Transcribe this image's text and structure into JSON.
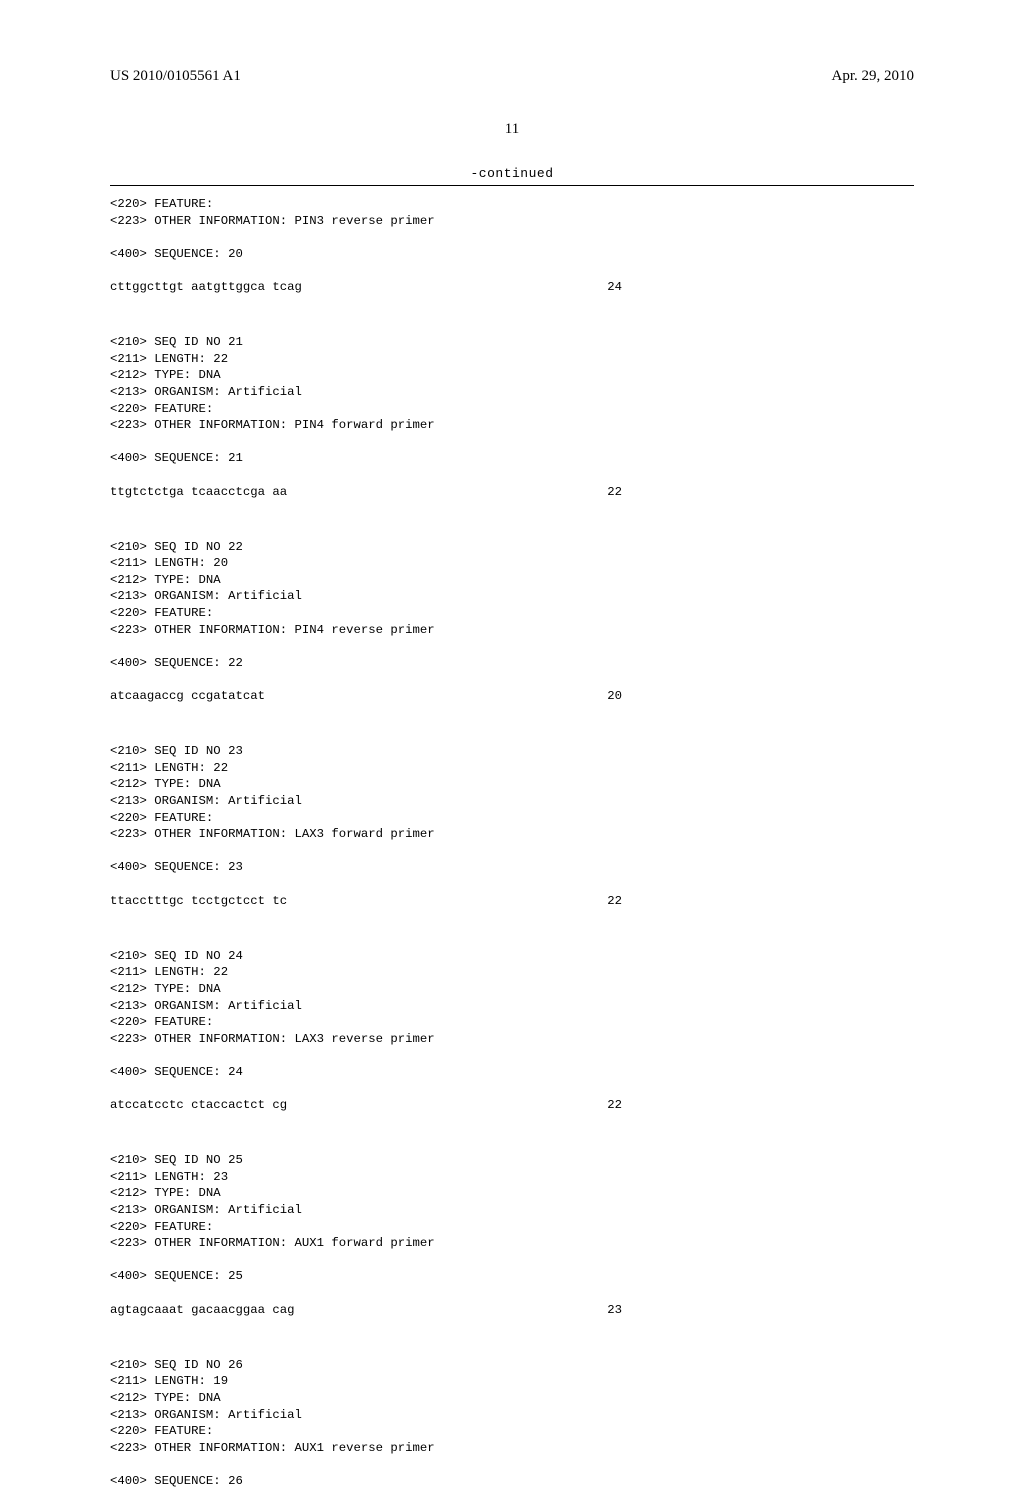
{
  "header": {
    "pub_number": "US 2010/0105561 A1",
    "pub_date": "Apr. 29, 2010"
  },
  "page_number": "11",
  "continued_label": "-continued",
  "sequences": [
    {
      "meta": [
        "<220> FEATURE:",
        "<223> OTHER INFORMATION: PIN3 reverse primer"
      ],
      "seq_label": "<400> SEQUENCE: 20",
      "sequence": "cttggcttgt aatgttggca tcag",
      "length": "24"
    },
    {
      "meta": [
        "<210> SEQ ID NO 21",
        "<211> LENGTH: 22",
        "<212> TYPE: DNA",
        "<213> ORGANISM: Artificial",
        "<220> FEATURE:",
        "<223> OTHER INFORMATION: PIN4 forward primer"
      ],
      "seq_label": "<400> SEQUENCE: 21",
      "sequence": "ttgtctctga tcaacctcga aa",
      "length": "22"
    },
    {
      "meta": [
        "<210> SEQ ID NO 22",
        "<211> LENGTH: 20",
        "<212> TYPE: DNA",
        "<213> ORGANISM: Artificial",
        "<220> FEATURE:",
        "<223> OTHER INFORMATION: PIN4 reverse primer"
      ],
      "seq_label": "<400> SEQUENCE: 22",
      "sequence": "atcaagaccg ccgatatcat",
      "length": "20"
    },
    {
      "meta": [
        "<210> SEQ ID NO 23",
        "<211> LENGTH: 22",
        "<212> TYPE: DNA",
        "<213> ORGANISM: Artificial",
        "<220> FEATURE:",
        "<223> OTHER INFORMATION: LAX3 forward primer"
      ],
      "seq_label": "<400> SEQUENCE: 23",
      "sequence": "ttacctttgc tcctgctcct tc",
      "length": "22"
    },
    {
      "meta": [
        "<210> SEQ ID NO 24",
        "<211> LENGTH: 22",
        "<212> TYPE: DNA",
        "<213> ORGANISM: Artificial",
        "<220> FEATURE:",
        "<223> OTHER INFORMATION: LAX3 reverse primer"
      ],
      "seq_label": "<400> SEQUENCE: 24",
      "sequence": "atccatcctc ctaccactct cg",
      "length": "22"
    },
    {
      "meta": [
        "<210> SEQ ID NO 25",
        "<211> LENGTH: 23",
        "<212> TYPE: DNA",
        "<213> ORGANISM: Artificial",
        "<220> FEATURE:",
        "<223> OTHER INFORMATION: AUX1 forward primer"
      ],
      "seq_label": "<400> SEQUENCE: 25",
      "sequence": "agtagcaaat gacaacggaa cag",
      "length": "23"
    },
    {
      "meta": [
        "<210> SEQ ID NO 26",
        "<211> LENGTH: 19",
        "<212> TYPE: DNA",
        "<213> ORGANISM: Artificial",
        "<220> FEATURE:",
        "<223> OTHER INFORMATION: AUX1 reverse primer"
      ],
      "seq_label": "<400> SEQUENCE: 26",
      "sequence": "",
      "length": ""
    }
  ]
}
